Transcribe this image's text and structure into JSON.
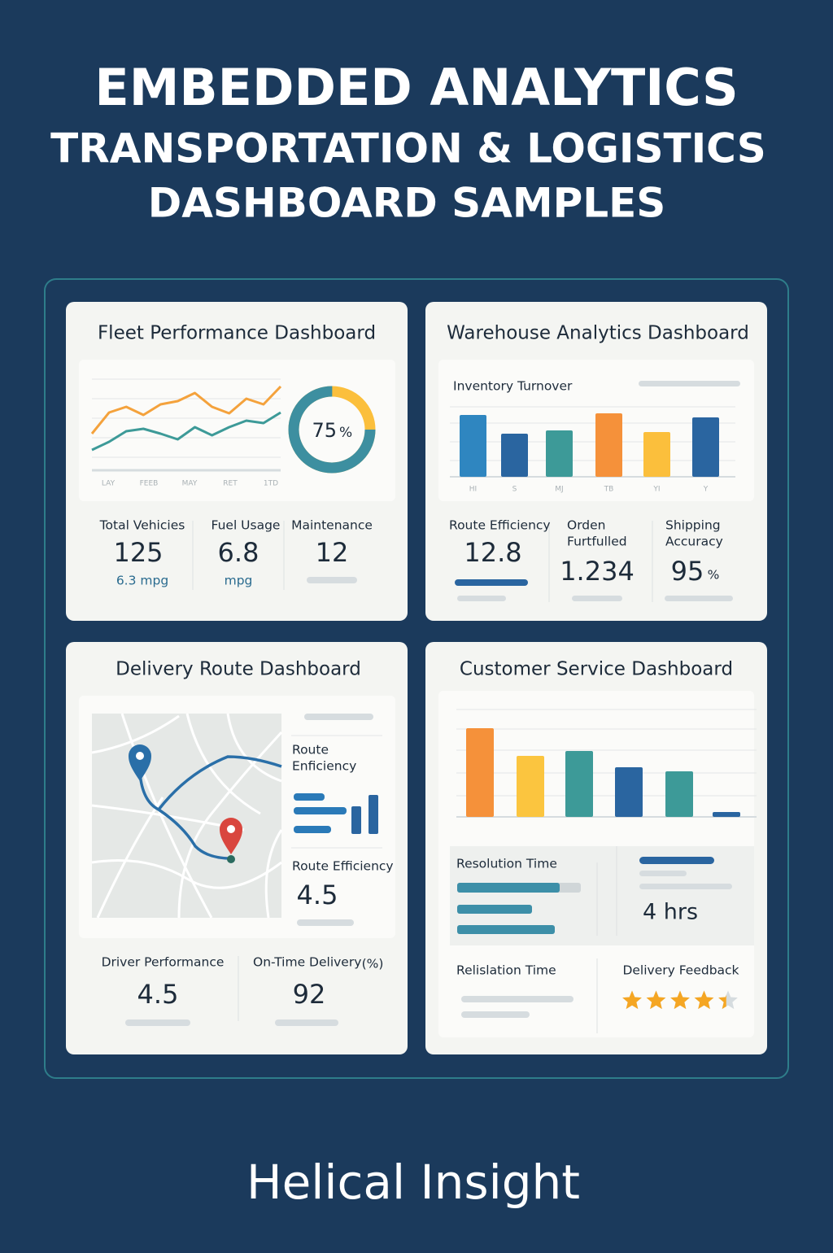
{
  "header": {
    "title": "EMBEDDED ANALYTICS",
    "subtitle_lines": [
      "TRANSPORTATION & LOGISTICS",
      "DASHBOARD SAMPLES"
    ]
  },
  "fleet": {
    "title": "Fleet Performance Dashboard",
    "line_chart": {
      "type": "line",
      "categories": [
        "LAY",
        "FEEB",
        "MAY",
        "RET",
        "1TD"
      ],
      "series": [
        {
          "color": "#f4a23c",
          "values": [
            45,
            71,
            78,
            68,
            81,
            85,
            95,
            78,
            70,
            88,
            81,
            103
          ]
        },
        {
          "color": "#3d9a98",
          "values": [
            25,
            35,
            48,
            51,
            45,
            38,
            53,
            43,
            53,
            61,
            58,
            71
          ]
        }
      ]
    },
    "gauge": {
      "type": "donut",
      "value": 75,
      "unit": "%",
      "colors": [
        "#3d8fa0",
        "#fbbf3c"
      ]
    },
    "kpis": [
      {
        "label": "Total Vehicies",
        "value": "125",
        "sub": "6.3 mpg"
      },
      {
        "label": "Fuel Usage",
        "value": "6.8",
        "sub": "mpg"
      },
      {
        "label": "Maintenance",
        "value": "12"
      }
    ]
  },
  "warehouse": {
    "title": "Warehouse Analytics Dashboard",
    "bar_chart": {
      "type": "bar",
      "title": "Inventory Turnover",
      "categories": [
        "HI",
        "S",
        "MJ",
        "TB",
        "YI",
        "Y"
      ],
      "values": [
        76,
        53,
        57,
        78,
        55,
        73
      ],
      "colors": [
        "#2f86c0",
        "#2a65a0",
        "#3d9a98",
        "#f5913a",
        "#fbbf3c",
        "#2a65a0"
      ]
    },
    "kpis": [
      {
        "label_lines": [
          "Route Efficiency"
        ],
        "value": "12.8"
      },
      {
        "label_lines": [
          "Orden",
          "Furtfulled"
        ],
        "value": "1.234"
      },
      {
        "label_lines": [
          "Shipping",
          "Accuracy"
        ],
        "value": "95",
        "unit": "%"
      }
    ]
  },
  "delivery": {
    "title": "Delivery Route Dashboard",
    "side": {
      "label_lines": [
        "Route",
        "Enficiency"
      ],
      "metric_label": "Route Efficiency",
      "metric_value": "4.5"
    },
    "kpis": [
      {
        "label": "Driver Performance",
        "value": "4.5"
      },
      {
        "label": "On-Time Delivery",
        "unit": "(%)",
        "value": "92"
      }
    ]
  },
  "customer": {
    "title": "Customer Service Dashboard",
    "bar_chart": {
      "type": "bar",
      "values": [
        109,
        75,
        81,
        61,
        56,
        6
      ],
      "colors": [
        "#f5913a",
        "#fbc53f",
        "#3d9a98",
        "#2a65a0",
        "#3d9a98",
        "#2a65a0"
      ]
    },
    "resolution": {
      "label": "Resolution Time",
      "value": "4 hrs"
    },
    "relislation": {
      "label": "Relislation Time"
    },
    "feedback": {
      "label": "Delivery Feedback",
      "rating": 4.5,
      "max": 5
    }
  },
  "footer": {
    "brand": "Helical Insight"
  }
}
